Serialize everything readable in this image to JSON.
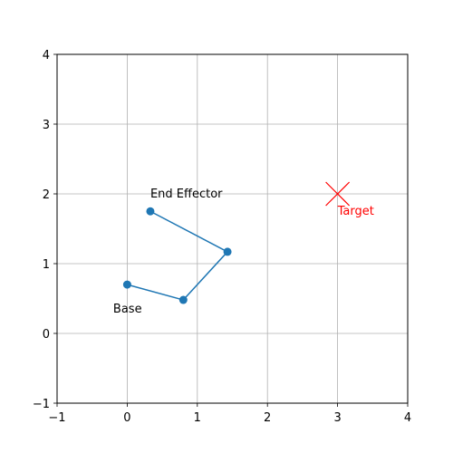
{
  "chart_data": {
    "type": "line",
    "title": "",
    "xlabel": "",
    "ylabel": "",
    "xlim": [
      -1,
      4
    ],
    "ylim": [
      -1,
      4
    ],
    "xticks": [
      -1,
      0,
      1,
      2,
      3,
      4
    ],
    "yticks": [
      -1,
      0,
      1,
      2,
      3,
      4
    ],
    "grid": true,
    "legend": null,
    "series": [
      {
        "color": "#1f77b4",
        "marker": "circle",
        "points": [
          {
            "x": 0.0,
            "y": 0.7
          },
          {
            "x": 0.8,
            "y": 0.48
          },
          {
            "x": 1.43,
            "y": 1.17
          },
          {
            "x": 0.33,
            "y": 1.75
          }
        ]
      }
    ],
    "target": {
      "x": 3.0,
      "y": 2.0,
      "marker": "x",
      "color": "#ff0000"
    },
    "annotations": [
      {
        "text": "Base",
        "x": -0.2,
        "y": 0.3,
        "color": "#000000"
      },
      {
        "text": "End Effector",
        "x": 0.33,
        "y": 1.95,
        "color": "#000000"
      },
      {
        "text": "Target",
        "x": 3.0,
        "y": 1.7,
        "color": "#ff0000"
      }
    ]
  }
}
